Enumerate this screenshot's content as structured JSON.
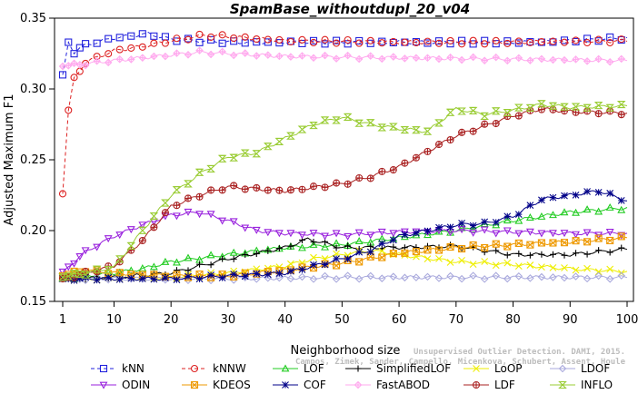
{
  "chart_data": {
    "type": "line",
    "title": "SpamBase_withoutdupl_20_v04",
    "xlabel": "Neighborhood size",
    "ylabel": "Adjusted Maximum F1",
    "xlim": [
      1,
      100
    ],
    "ylim": [
      0.15,
      0.35
    ],
    "xticks": [
      "1",
      "10",
      "20",
      "30",
      "40",
      "50",
      "60",
      "70",
      "80",
      "90",
      "100"
    ],
    "yticks": [
      "0.15",
      "0.20",
      "0.25",
      "0.30",
      "0.35"
    ],
    "grid": false,
    "legend_position": "bottom",
    "watermark": [
      "Campos, Zimek, Sander, Campello, Micenkova, Schubert, Assent, Houle",
      "Unsupervised Outlier Detection. DAMI, 2015."
    ],
    "series": [
      {
        "name": "kNN",
        "color": "#2222dd",
        "marker": "square",
        "dash": "4,3",
        "points": [
          [
            1,
            0.31
          ],
          [
            2,
            0.333
          ],
          [
            3,
            0.326
          ],
          [
            5,
            0.331
          ],
          [
            10,
            0.336
          ],
          [
            16,
            0.339
          ],
          [
            20,
            0.335
          ],
          [
            30,
            0.333
          ],
          [
            50,
            0.333
          ],
          [
            70,
            0.333
          ],
          [
            85,
            0.333
          ],
          [
            100,
            0.336
          ]
        ]
      },
      {
        "name": "kNNW",
        "color": "#dd2222",
        "marker": "circle",
        "dash": "4,3",
        "points": [
          [
            1,
            0.226
          ],
          [
            2,
            0.285
          ],
          [
            3,
            0.307
          ],
          [
            5,
            0.319
          ],
          [
            10,
            0.327
          ],
          [
            15,
            0.33
          ],
          [
            20,
            0.334
          ],
          [
            26,
            0.338
          ],
          [
            30,
            0.337
          ],
          [
            40,
            0.334
          ],
          [
            60,
            0.333
          ],
          [
            80,
            0.333
          ],
          [
            100,
            0.334
          ]
        ]
      },
      {
        "name": "LOF",
        "color": "#22cc22",
        "marker": "triangle-up",
        "dash": "none",
        "points": [
          [
            1,
            0.166
          ],
          [
            5,
            0.168
          ],
          [
            10,
            0.17
          ],
          [
            15,
            0.173
          ],
          [
            20,
            0.178
          ],
          [
            30,
            0.183
          ],
          [
            40,
            0.188
          ],
          [
            50,
            0.19
          ],
          [
            60,
            0.195
          ],
          [
            70,
            0.2
          ],
          [
            80,
            0.207
          ],
          [
            90,
            0.213
          ],
          [
            100,
            0.216
          ]
        ]
      },
      {
        "name": "SimplifiedLOF",
        "color": "#000000",
        "marker": "plus",
        "dash": "none",
        "points": [
          [
            1,
            0.166
          ],
          [
            10,
            0.167
          ],
          [
            20,
            0.17
          ],
          [
            30,
            0.18
          ],
          [
            40,
            0.188
          ],
          [
            44,
            0.194
          ],
          [
            50,
            0.188
          ],
          [
            60,
            0.188
          ],
          [
            70,
            0.189
          ],
          [
            80,
            0.183
          ],
          [
            90,
            0.183
          ],
          [
            100,
            0.187
          ]
        ]
      },
      {
        "name": "LoOP",
        "color": "#eeee00",
        "marker": "x",
        "dash": "none",
        "points": [
          [
            1,
            0.166
          ],
          [
            10,
            0.166
          ],
          [
            20,
            0.167
          ],
          [
            30,
            0.17
          ],
          [
            40,
            0.175
          ],
          [
            45,
            0.18
          ],
          [
            50,
            0.183
          ],
          [
            55,
            0.186
          ],
          [
            60,
            0.183
          ],
          [
            70,
            0.178
          ],
          [
            80,
            0.176
          ],
          [
            90,
            0.173
          ],
          [
            100,
            0.171
          ]
        ]
      },
      {
        "name": "LDOF",
        "color": "#aaaadd",
        "marker": "diamond",
        "dash": "none",
        "points": [
          [
            1,
            0.166
          ],
          [
            10,
            0.166
          ],
          [
            30,
            0.166
          ],
          [
            50,
            0.167
          ],
          [
            70,
            0.167
          ],
          [
            100,
            0.167
          ]
        ]
      },
      {
        "name": "ODIN",
        "color": "#9922dd",
        "marker": "triangle-down",
        "dash": "none",
        "points": [
          [
            1,
            0.171
          ],
          [
            5,
            0.185
          ],
          [
            10,
            0.196
          ],
          [
            15,
            0.204
          ],
          [
            20,
            0.211
          ],
          [
            25,
            0.213
          ],
          [
            30,
            0.207
          ],
          [
            35,
            0.2
          ],
          [
            40,
            0.198
          ],
          [
            50,
            0.197
          ],
          [
            60,
            0.199
          ],
          [
            70,
            0.2
          ],
          [
            80,
            0.199
          ],
          [
            90,
            0.198
          ],
          [
            100,
            0.198
          ]
        ]
      },
      {
        "name": "KDEOS",
        "color": "#ee9900",
        "marker": "square-x",
        "dash": "none",
        "points": [
          [
            1,
            0.168
          ],
          [
            5,
            0.172
          ],
          [
            10,
            0.17
          ],
          [
            20,
            0.168
          ],
          [
            30,
            0.168
          ],
          [
            40,
            0.172
          ],
          [
            50,
            0.177
          ],
          [
            60,
            0.184
          ],
          [
            70,
            0.188
          ],
          [
            80,
            0.19
          ],
          [
            90,
            0.192
          ],
          [
            100,
            0.195
          ]
        ]
      },
      {
        "name": "COF",
        "color": "#000088",
        "marker": "star",
        "dash": "none",
        "points": [
          [
            1,
            0.166
          ],
          [
            20,
            0.166
          ],
          [
            40,
            0.17
          ],
          [
            50,
            0.18
          ],
          [
            55,
            0.186
          ],
          [
            60,
            0.196
          ],
          [
            70,
            0.204
          ],
          [
            75,
            0.205
          ],
          [
            80,
            0.21
          ],
          [
            85,
            0.222
          ],
          [
            90,
            0.225
          ],
          [
            95,
            0.228
          ],
          [
            100,
            0.221
          ]
        ]
      },
      {
        "name": "FastABOD",
        "color": "#ffaaee",
        "marker": "diamond-plus",
        "dash": "none",
        "points": [
          [
            1,
            0.316
          ],
          [
            10,
            0.32
          ],
          [
            20,
            0.324
          ],
          [
            25,
            0.326
          ],
          [
            40,
            0.323
          ],
          [
            60,
            0.322
          ],
          [
            80,
            0.321
          ],
          [
            100,
            0.32
          ]
        ]
      },
      {
        "name": "LDF",
        "color": "#aa2222",
        "marker": "circle-plus",
        "dash": "none",
        "points": [
          [
            1,
            0.166
          ],
          [
            10,
            0.175
          ],
          [
            15,
            0.193
          ],
          [
            20,
            0.217
          ],
          [
            25,
            0.225
          ],
          [
            30,
            0.231
          ],
          [
            40,
            0.228
          ],
          [
            50,
            0.233
          ],
          [
            55,
            0.238
          ],
          [
            60,
            0.245
          ],
          [
            65,
            0.256
          ],
          [
            70,
            0.267
          ],
          [
            75,
            0.274
          ],
          [
            80,
            0.281
          ],
          [
            85,
            0.286
          ],
          [
            90,
            0.284
          ],
          [
            100,
            0.283
          ]
        ]
      },
      {
        "name": "INFLO",
        "color": "#99cc33",
        "marker": "hourglass",
        "dash": "none",
        "points": [
          [
            1,
            0.167
          ],
          [
            5,
            0.17
          ],
          [
            10,
            0.174
          ],
          [
            15,
            0.2
          ],
          [
            20,
            0.225
          ],
          [
            25,
            0.24
          ],
          [
            30,
            0.252
          ],
          [
            35,
            0.255
          ],
          [
            40,
            0.265
          ],
          [
            45,
            0.275
          ],
          [
            50,
            0.28
          ],
          [
            55,
            0.275
          ],
          [
            60,
            0.272
          ],
          [
            65,
            0.27
          ],
          [
            70,
            0.286
          ],
          [
            75,
            0.282
          ],
          [
            80,
            0.285
          ],
          [
            85,
            0.289
          ],
          [
            90,
            0.287
          ],
          [
            100,
            0.288
          ]
        ]
      }
    ]
  }
}
